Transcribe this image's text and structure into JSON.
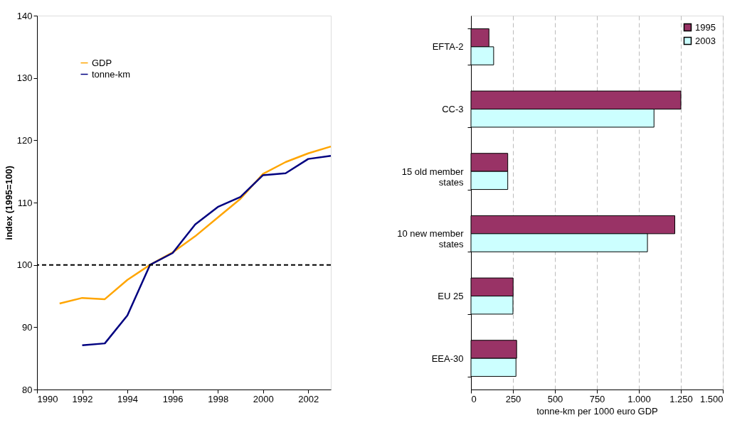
{
  "chart_data": [
    {
      "type": "line",
      "ylabel": "index (1995=100)",
      "xlim": [
        1990,
        2003
      ],
      "xticks": [
        1990,
        1992,
        1994,
        1996,
        1998,
        2000,
        2002
      ],
      "ylim": [
        80,
        140
      ],
      "yticks": [
        80,
        90,
        100,
        110,
        120,
        130,
        140
      ],
      "grid": false,
      "legend": "top left",
      "line_style": "solid",
      "marker": "none",
      "ref_lines": [
        {
          "axis": "y",
          "value": 100,
          "color": "#000000",
          "line_style": "dashed"
        }
      ],
      "series": [
        {
          "name": "GDP",
          "color": "#ffa500",
          "x": [
            1991,
            1992,
            1993,
            1994,
            1995,
            1996,
            1997,
            1998,
            1999,
            2000,
            2001,
            2002,
            2003
          ],
          "values": [
            93.8,
            94.7,
            94.5,
            97.6,
            100,
            102.0,
            104.6,
            107.6,
            110.6,
            114.6,
            116.5,
            117.9,
            119.0
          ]
        },
        {
          "name": "tonne-km",
          "color": "#000080",
          "x": [
            1992,
            1993,
            1994,
            1995,
            1996,
            1997,
            1998,
            1999,
            2000,
            2001,
            2002,
            2003
          ],
          "values": [
            87.1,
            87.4,
            91.9,
            100,
            101.9,
            106.5,
            109.3,
            110.9,
            114.4,
            114.7,
            117.0,
            117.5
          ]
        }
      ]
    },
    {
      "type": "bar",
      "orientation": "horizontal",
      "xlabel": "tonne-km per 1000 euro GDP",
      "xlim": [
        0,
        1500
      ],
      "xticks": [
        0,
        250,
        500,
        750,
        {
          "value": 1000,
          "label": "1.000"
        },
        {
          "value": 1250,
          "label": "1.250"
        },
        {
          "value": 1500,
          "label": "1.500"
        }
      ],
      "grid": "x",
      "legend": "top right",
      "categories": [
        "EFTA-2",
        "CC-3",
        "15 old member states",
        "10 new member states",
        "EU 25",
        "EEA-30"
      ],
      "series": [
        {
          "name": "1995",
          "color": "#993366",
          "values": [
            107,
            1250,
            219,
            1214,
            251,
            272
          ]
        },
        {
          "name": "2003",
          "color": "#ccffff",
          "values": [
            135,
            1090,
            219,
            1051,
            250,
            268
          ]
        }
      ]
    }
  ]
}
